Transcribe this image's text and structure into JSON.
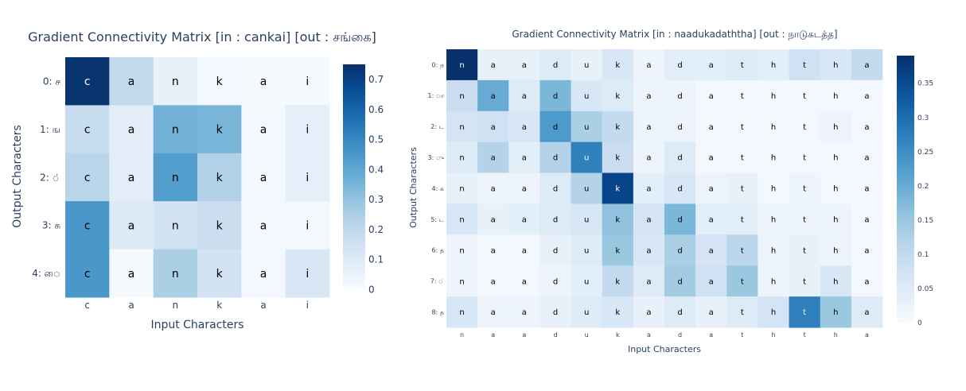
{
  "chart_data": [
    {
      "type": "heatmap",
      "title": "Gradient Connectivity Matrix [in : cankai] [out : சங்கை]",
      "xlabel": "Input Characters",
      "ylabel": "Output Characters",
      "x": [
        "c",
        "a",
        "n",
        "k",
        "a",
        "i"
      ],
      "y": [
        "0: ச",
        "1: ங",
        "2: ்",
        "3: க",
        "4: ை"
      ],
      "cell_text": [
        "c",
        "a",
        "n",
        "k",
        "a",
        "i"
      ],
      "values": [
        [
          0.74,
          0.2,
          0.06,
          0.02,
          0.01,
          0.01
        ],
        [
          0.18,
          0.08,
          0.36,
          0.35,
          0.02,
          0.07
        ],
        [
          0.22,
          0.08,
          0.43,
          0.24,
          0.02,
          0.07
        ],
        [
          0.45,
          0.1,
          0.14,
          0.17,
          0.02,
          0.02
        ],
        [
          0.45,
          0.01,
          0.25,
          0.14,
          0.02,
          0.12
        ]
      ],
      "zrange": [
        0,
        0.75
      ],
      "colorbar_ticks": [
        "0",
        "0.1",
        "0.2",
        "0.3",
        "0.4",
        "0.5",
        "0.6",
        "0.7"
      ],
      "colorbar_values": [
        0,
        0.1,
        0.2,
        0.3,
        0.4,
        0.5,
        0.6,
        0.7
      ],
      "colorscale": "Blues"
    },
    {
      "type": "heatmap",
      "title": "Gradient Connectivity Matrix [in : naadukadaththa] [out : நாடுகடத்த]",
      "xlabel": "Input Characters",
      "ylabel": "Output Characters",
      "x": [
        "n",
        "a",
        "a",
        "d",
        "u",
        "k",
        "a",
        "d",
        "a",
        "t",
        "h",
        "t",
        "h",
        "a"
      ],
      "y": [
        "0: ந",
        "1: ா",
        "2: ட",
        "3: ு",
        "4: க",
        "5: ட",
        "6: த",
        "7: ்",
        "8: த"
      ],
      "cell_text": [
        "n",
        "a",
        "a",
        "d",
        "u",
        "k",
        "a",
        "d",
        "a",
        "t",
        "h",
        "t",
        "h",
        "a"
      ],
      "values": [
        [
          0.39,
          0.03,
          0.03,
          0.05,
          0.03,
          0.06,
          0.02,
          0.04,
          0.04,
          0.05,
          0.04,
          0.08,
          0.06,
          0.1
        ],
        [
          0.09,
          0.2,
          0.05,
          0.18,
          0.06,
          0.05,
          0.02,
          0.02,
          0.01,
          0.01,
          0.01,
          0.01,
          0.01,
          0.01
        ],
        [
          0.07,
          0.08,
          0.06,
          0.23,
          0.13,
          0.1,
          0.02,
          0.02,
          0.01,
          0.01,
          0.01,
          0.01,
          0.02,
          0.01
        ],
        [
          0.05,
          0.12,
          0.04,
          0.12,
          0.27,
          0.09,
          0.02,
          0.05,
          0.01,
          0.01,
          0.01,
          0.01,
          0.01,
          0.01
        ],
        [
          0.03,
          0.02,
          0.02,
          0.05,
          0.12,
          0.36,
          0.04,
          0.06,
          0.02,
          0.03,
          0.01,
          0.02,
          0.01,
          0.01
        ],
        [
          0.06,
          0.03,
          0.04,
          0.05,
          0.06,
          0.16,
          0.07,
          0.18,
          0.04,
          0.04,
          0.02,
          0.02,
          0.02,
          0.01
        ],
        [
          0.02,
          0.01,
          0.01,
          0.03,
          0.05,
          0.15,
          0.06,
          0.13,
          0.07,
          0.11,
          0.02,
          0.03,
          0.02,
          0.01
        ],
        [
          0.02,
          0.01,
          0.01,
          0.02,
          0.04,
          0.1,
          0.05,
          0.14,
          0.08,
          0.15,
          0.02,
          0.03,
          0.06,
          0.01
        ],
        [
          0.06,
          0.02,
          0.02,
          0.03,
          0.05,
          0.06,
          0.03,
          0.05,
          0.03,
          0.05,
          0.07,
          0.27,
          0.15,
          0.05
        ]
      ],
      "zrange": [
        0,
        0.39
      ],
      "colorbar_ticks": [
        "0",
        "0.05",
        "0.1",
        "0.15",
        "0.2",
        "0.25",
        "0.3",
        "0.35"
      ],
      "colorbar_values": [
        0,
        0.05,
        0.1,
        0.15,
        0.2,
        0.25,
        0.3,
        0.35
      ],
      "colorscale": "Blues"
    }
  ]
}
